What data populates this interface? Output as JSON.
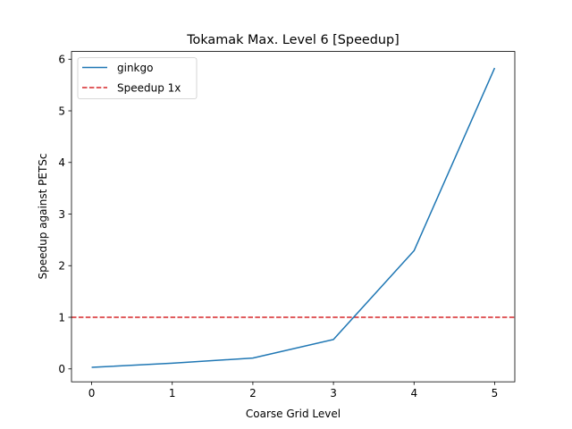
{
  "chart_data": {
    "type": "line",
    "title": "Tokamak Max. Level 6 [Speedup]",
    "xlabel": "Coarse Grid Level",
    "ylabel": "Speedup against PETSc",
    "xlim": [
      -0.25,
      5.25
    ],
    "ylim": [
      -0.25,
      6.15
    ],
    "xticks": [
      0,
      1,
      2,
      3,
      4,
      5
    ],
    "yticks": [
      0,
      1,
      2,
      3,
      4,
      5,
      6
    ],
    "xtick_labels": [
      "0",
      "1",
      "2",
      "3",
      "4",
      "5"
    ],
    "ytick_labels": [
      "0",
      "1",
      "2",
      "3",
      "4",
      "5",
      "6"
    ],
    "grid": false,
    "legend_position": "upper-left",
    "series": [
      {
        "name": "ginkgo",
        "x": [
          0,
          1,
          2,
          3,
          4,
          5
        ],
        "values": [
          0.03,
          0.11,
          0.21,
          0.57,
          2.29,
          5.83
        ],
        "color": "#1f77b4",
        "style": "solid"
      }
    ],
    "reference_line": {
      "name": "Speedup 1x",
      "y": 1,
      "color": "#d62728",
      "style": "dashed"
    }
  }
}
